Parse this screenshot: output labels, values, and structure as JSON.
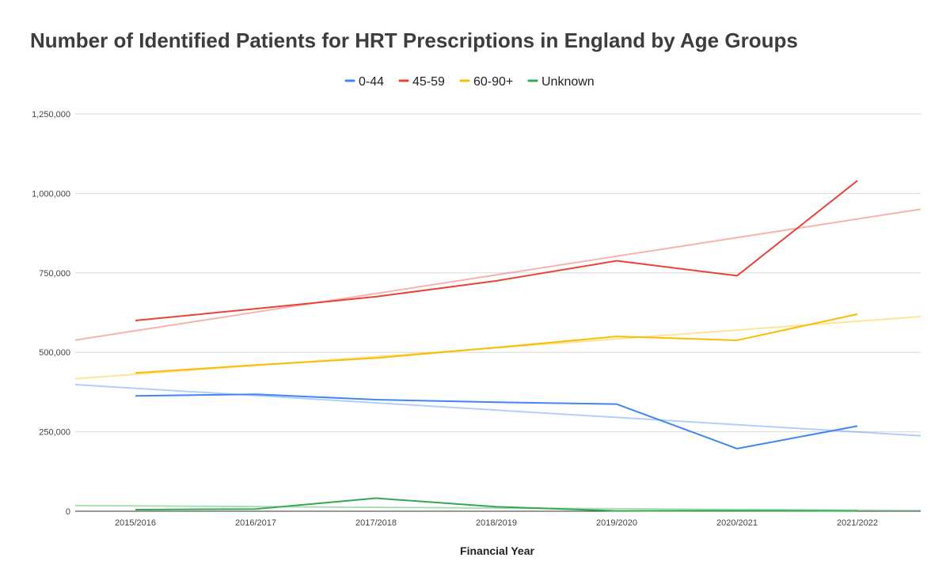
{
  "chart_data": {
    "type": "line",
    "title": "Number of Identified Patients for HRT Prescriptions in England by Age Groups",
    "xlabel": "Financial Year",
    "ylabel": "",
    "categories": [
      "2015/2016",
      "2016/2017",
      "2017/2018",
      "2018/2019",
      "2019/2020",
      "2020/2021",
      "2021/2022"
    ],
    "ylim": [
      0,
      1250000
    ],
    "yticks": [
      0,
      250000,
      500000,
      750000,
      1000000,
      1250000
    ],
    "ytick_labels": [
      "0",
      "250,000",
      "500,000",
      "750,000",
      "1,000,000",
      "1,250,000"
    ],
    "grid": true,
    "legend_position": "top",
    "series": [
      {
        "name": "0-44",
        "color": "#4285f4",
        "values": [
          363000,
          368000,
          351000,
          343000,
          337000,
          197000,
          268000
        ]
      },
      {
        "name": "45-59",
        "color": "#ea4335",
        "values": [
          600000,
          637000,
          675000,
          725000,
          788000,
          741000,
          1040000
        ]
      },
      {
        "name": "60-90+",
        "color": "#fbbc04",
        "values": [
          435000,
          460000,
          482000,
          515000,
          550000,
          538000,
          620000
        ]
      },
      {
        "name": "Unknown",
        "color": "#34a853",
        "values": [
          5000,
          7000,
          41000,
          14000,
          1000,
          2000,
          1000
        ]
      }
    ],
    "trendlines": true
  }
}
